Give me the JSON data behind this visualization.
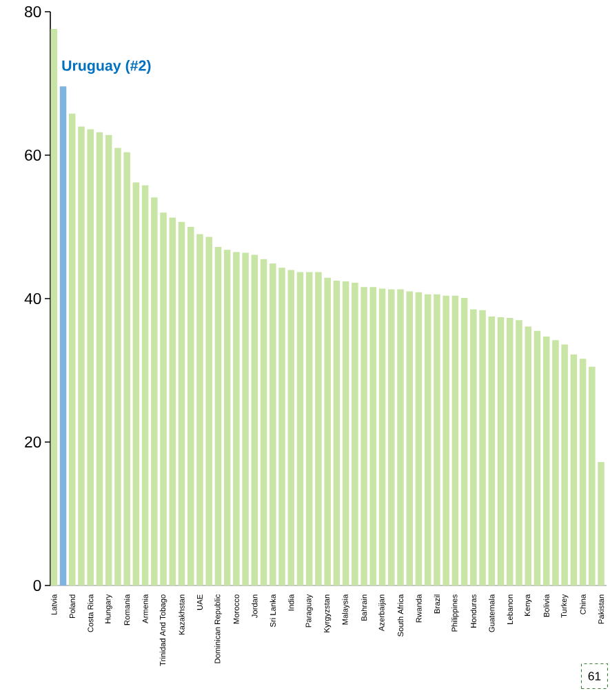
{
  "chart_data": {
    "type": "bar",
    "categories": [
      "Latvia",
      null,
      "Poland",
      null,
      "Costa Rica",
      null,
      "Hungary",
      null,
      "Romania",
      null,
      "Armenia",
      null,
      "Trinidad And Tobago",
      null,
      "Kazakhstan",
      null,
      "UAE",
      null,
      "Dominican Republic",
      null,
      "Morocco",
      null,
      "Jordan",
      null,
      "Sri Lanka",
      null,
      "India",
      null,
      "Paraguay",
      null,
      "Kyrgyzstan",
      null,
      "Malaysia",
      null,
      "Bahrain",
      null,
      "Azerbaijan",
      null,
      "South Africa",
      null,
      "Rwanda",
      null,
      "Brazil",
      null,
      "Philippines",
      null,
      "Honduras",
      null,
      "Guatemala",
      null,
      "Lebanon",
      null,
      "Kenya",
      null,
      "Bolivia",
      null,
      "Turkey",
      null,
      "China",
      null,
      "Pakistan"
    ],
    "values": [
      77.6,
      69.6,
      65.8,
      64.0,
      63.6,
      63.2,
      62.8,
      61.0,
      60.4,
      56.2,
      55.8,
      54.1,
      52.0,
      51.3,
      50.7,
      50.0,
      49.0,
      48.6,
      47.2,
      46.8,
      46.5,
      46.4,
      46.1,
      45.5,
      44.9,
      44.3,
      44.0,
      43.7,
      43.7,
      43.7,
      42.9,
      42.5,
      42.4,
      42.2,
      41.6,
      41.6,
      41.4,
      41.3,
      41.3,
      41.0,
      40.9,
      40.6,
      40.6,
      40.4,
      40.4,
      40.1,
      38.5,
      38.4,
      37.5,
      37.4,
      37.3,
      37.0,
      36.1,
      35.5,
      34.7,
      34.2,
      33.6,
      32.2,
      31.6,
      30.5,
      17.2
    ],
    "colors": [
      "#c9e5a5",
      "#7fb4de",
      "#c9e5a5",
      "#c9e5a5",
      "#c9e5a5",
      "#c9e5a5",
      "#c9e5a5",
      "#c9e5a5",
      "#c9e5a5",
      "#c9e5a5",
      "#c9e5a5",
      "#c9e5a5",
      "#c9e5a5",
      "#c9e5a5",
      "#c9e5a5",
      "#c9e5a5",
      "#c9e5a5",
      "#c9e5a5",
      "#c9e5a5",
      "#c9e5a5",
      "#c9e5a5",
      "#c9e5a5",
      "#c9e5a5",
      "#c9e5a5",
      "#c9e5a5",
      "#c9e5a5",
      "#c9e5a5",
      "#c9e5a5",
      "#c9e5a5",
      "#c9e5a5",
      "#c9e5a5",
      "#c9e5a5",
      "#c9e5a5",
      "#c9e5a5",
      "#c9e5a5",
      "#c9e5a5",
      "#c9e5a5",
      "#c9e5a5",
      "#c9e5a5",
      "#c9e5a5",
      "#c9e5a5",
      "#c9e5a5",
      "#c9e5a5",
      "#c9e5a5",
      "#c9e5a5",
      "#c9e5a5",
      "#c9e5a5",
      "#c9e5a5",
      "#c9e5a5",
      "#c9e5a5",
      "#c9e5a5",
      "#c9e5a5",
      "#c9e5a5",
      "#c9e5a5",
      "#c9e5a5",
      "#c9e5a5",
      "#c9e5a5",
      "#c9e5a5",
      "#c9e5a5",
      "#c9e5a5",
      "#c9e5a5"
    ],
    "ylim": [
      0,
      80
    ],
    "yticks": [
      0,
      20,
      40,
      60,
      80
    ],
    "annotations": [
      "Uruguay (#2)",
      "61"
    ]
  }
}
